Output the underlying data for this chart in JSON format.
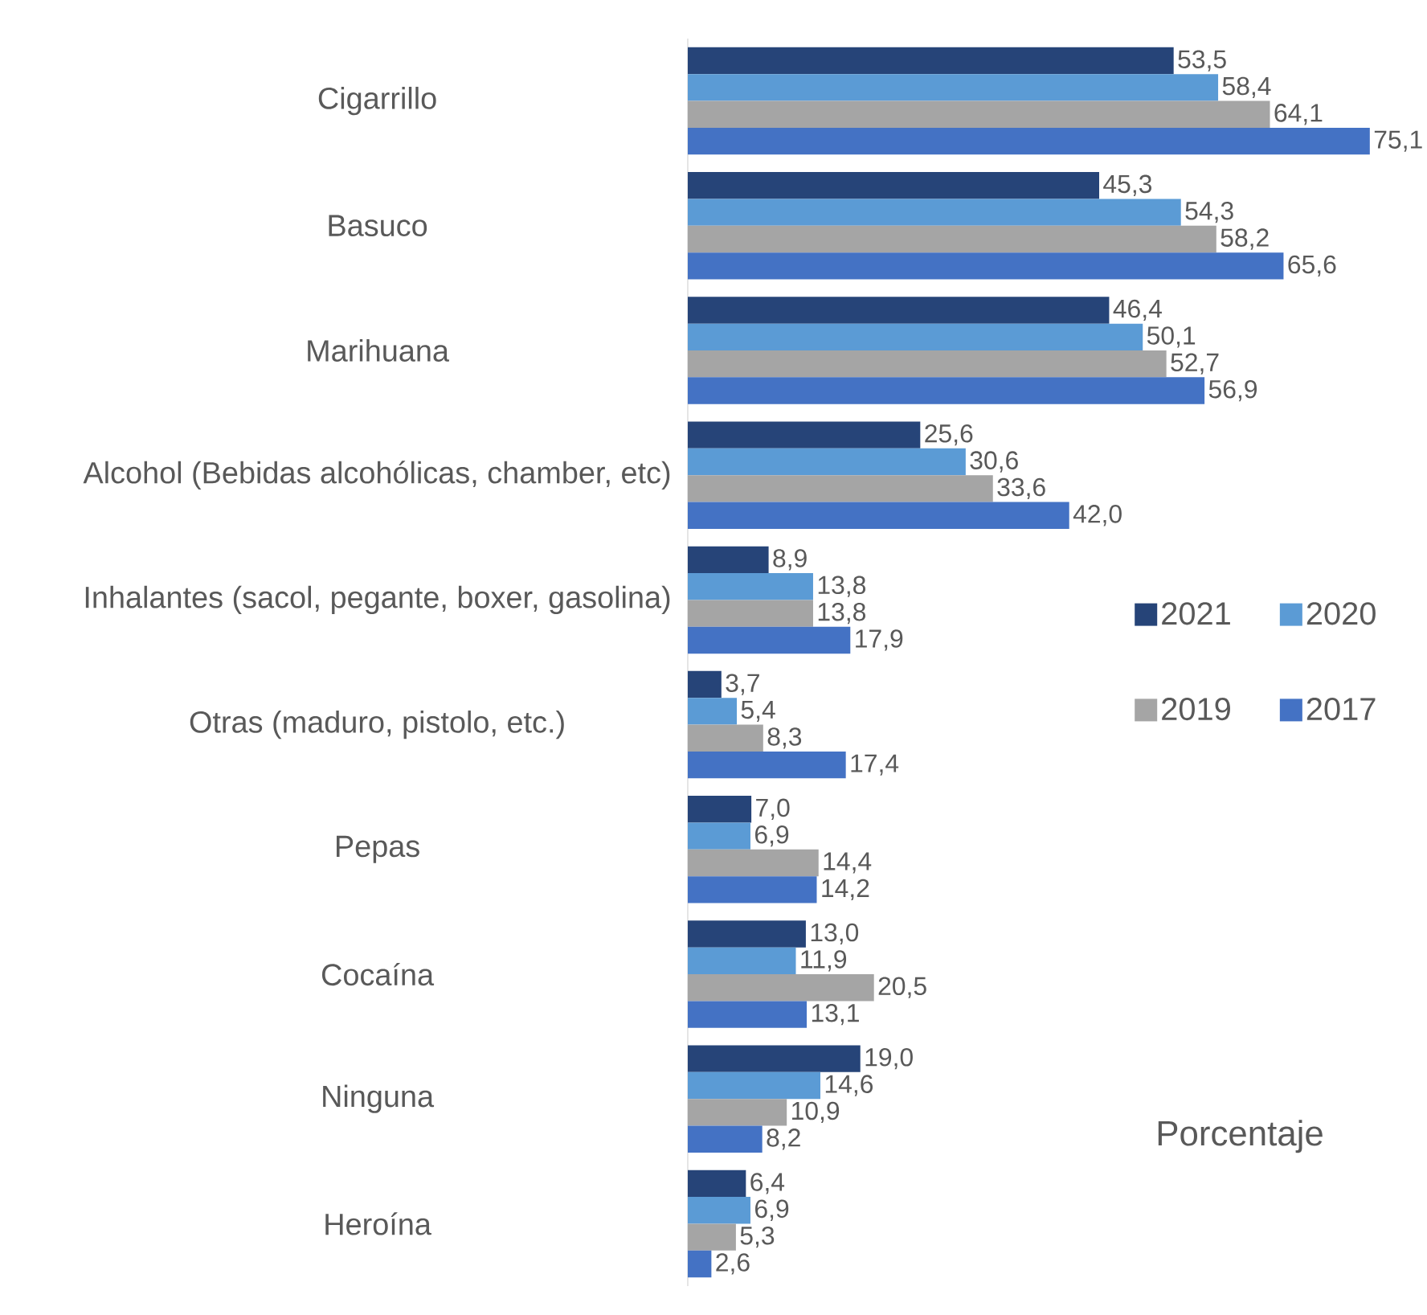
{
  "chart_data": {
    "type": "bar",
    "orientation": "horizontal",
    "xlabel": "Porcentaje",
    "categories": [
      "Cigarrillo",
      "Basuco",
      "Marihuana",
      "Alcohol (Bebidas alcohólicas, chamber, etc)",
      "Inhalantes (sacol, pegante, boxer, gasolina)",
      "Otras (maduro, pistolo, etc.)",
      "Pepas",
      "Cocaína",
      "Ninguna",
      "Heroína"
    ],
    "legend": "right",
    "tick_labels": "y",
    "series": [
      {
        "name": "2021",
        "color": "#264478",
        "values": [
          53.5,
          45.3,
          46.4,
          25.6,
          8.9,
          3.7,
          7.0,
          13.0,
          19.0,
          6.4
        ],
        "value_labels": [
          "53,5",
          "45,3",
          "46,4",
          "25,6",
          "8,9",
          "3,7",
          "7,0",
          "13,0",
          "19,0",
          "6,4"
        ]
      },
      {
        "name": "2020",
        "color": "#5b9bd5",
        "values": [
          58.4,
          54.3,
          50.1,
          30.6,
          13.8,
          5.4,
          6.9,
          11.9,
          14.6,
          6.9
        ],
        "value_labels": [
          "58,4",
          "54,3",
          "50,1",
          "30,6",
          "13,8",
          "5,4",
          "6,9",
          "11,9",
          "14,6",
          "6,9"
        ]
      },
      {
        "name": "2019",
        "color": "#a5a5a5",
        "values": [
          64.1,
          58.2,
          52.7,
          33.6,
          13.8,
          8.3,
          14.4,
          20.5,
          10.9,
          5.3
        ],
        "value_labels": [
          "64,1",
          "58,2",
          "52,7",
          "33,6",
          "13,8",
          "8,3",
          "14,4",
          "20,5",
          "10,9",
          "5,3"
        ]
      },
      {
        "name": "2017",
        "color": "#4472c4",
        "values": [
          75.1,
          65.6,
          56.9,
          42.0,
          17.9,
          17.4,
          14.2,
          13.1,
          8.2,
          2.6
        ],
        "value_labels": [
          "75,1",
          "65,6",
          "56,9",
          "42,0",
          "17,9",
          "17,4",
          "14,2",
          "13,1",
          "8,2",
          "2,6"
        ]
      }
    ]
  }
}
